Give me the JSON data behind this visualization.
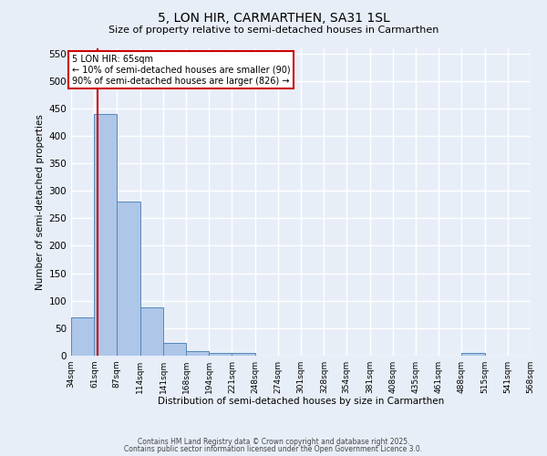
{
  "title": "5, LON HIR, CARMARTHEN, SA31 1SL",
  "subtitle": "Size of property relative to semi-detached houses in Carmarthen",
  "xlabel": "Distribution of semi-detached houses by size in Carmarthen",
  "ylabel": "Number of semi-detached properties",
  "bin_labels": [
    "34sqm",
    "61sqm",
    "87sqm",
    "114sqm",
    "141sqm",
    "168sqm",
    "194sqm",
    "221sqm",
    "248sqm",
    "274sqm",
    "301sqm",
    "328sqm",
    "354sqm",
    "381sqm",
    "408sqm",
    "435sqm",
    "461sqm",
    "488sqm",
    "515sqm",
    "541sqm",
    "568sqm"
  ],
  "bin_edges": [
    34,
    61,
    87,
    114,
    141,
    168,
    194,
    221,
    248,
    274,
    301,
    328,
    354,
    381,
    408,
    435,
    461,
    488,
    515,
    541,
    568
  ],
  "bar_heights": [
    70,
    440,
    280,
    88,
    23,
    9,
    5,
    5,
    0,
    0,
    0,
    0,
    0,
    0,
    0,
    0,
    0,
    5,
    0,
    0
  ],
  "bar_color": "#aec6e8",
  "bar_edge_color": "#5588bb",
  "property_line_x": 65,
  "property_line_color": "#cc0000",
  "annotation_text": "5 LON HIR: 65sqm\n← 10% of semi-detached houses are smaller (90)\n90% of semi-detached houses are larger (826) →",
  "annotation_box_color": "#ffffff",
  "annotation_box_edge_color": "#cc0000",
  "ylim": [
    0,
    560
  ],
  "yticks": [
    0,
    50,
    100,
    150,
    200,
    250,
    300,
    350,
    400,
    450,
    500,
    550
  ],
  "background_color": "#e8eef8",
  "grid_color": "#ffffff",
  "footer_line1": "Contains HM Land Registry data © Crown copyright and database right 2025.",
  "footer_line2": "Contains public sector information licensed under the Open Government Licence 3.0."
}
